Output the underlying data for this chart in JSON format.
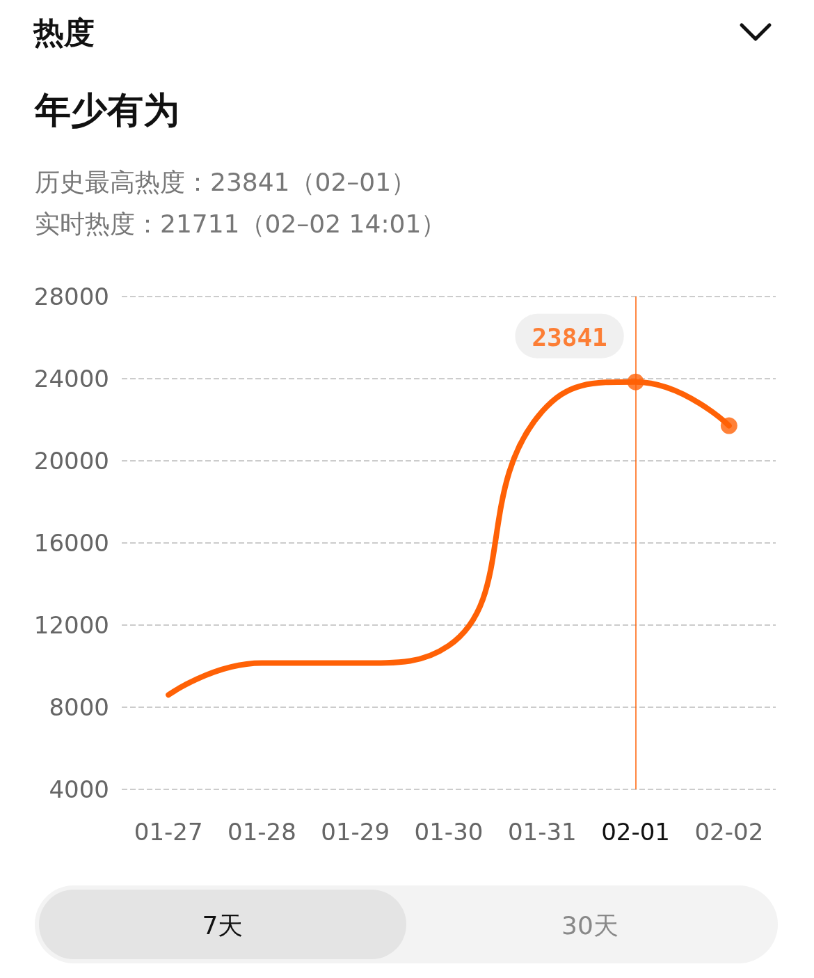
{
  "chart_data": {
    "type": "line",
    "title": "年少有为",
    "annotations": [
      "热度",
      "历史最高热度：23841（02–01）",
      "实时热度：21711（02–02 14:01）",
      "7天",
      "30天"
    ],
    "categories": [
      "01-27",
      "01-28",
      "01-29",
      "01-30",
      "01-31",
      "02-01",
      "02-02"
    ],
    "series": [
      {
        "color": "#ff6106",
        "values": [
          8600,
          10150,
          10150,
          11000,
          22400,
          23841,
          21711
        ]
      },
      {
        "type": "scatter",
        "color": "#ff6106",
        "x": [
          "02-01",
          "02-02"
        ],
        "values": [
          23841,
          21711
        ],
        "value_labels": [
          "23841",
          null
        ]
      }
    ],
    "ylim": [
      4000,
      28000
    ],
    "yticks": [
      4000,
      8000,
      12000,
      16000,
      20000,
      24000,
      28000
    ],
    "grid": "y",
    "line_style": "solid",
    "ref_lines": [
      {
        "axis": "x",
        "value": "02-01",
        "color": "#ff6106"
      }
    ]
  }
}
